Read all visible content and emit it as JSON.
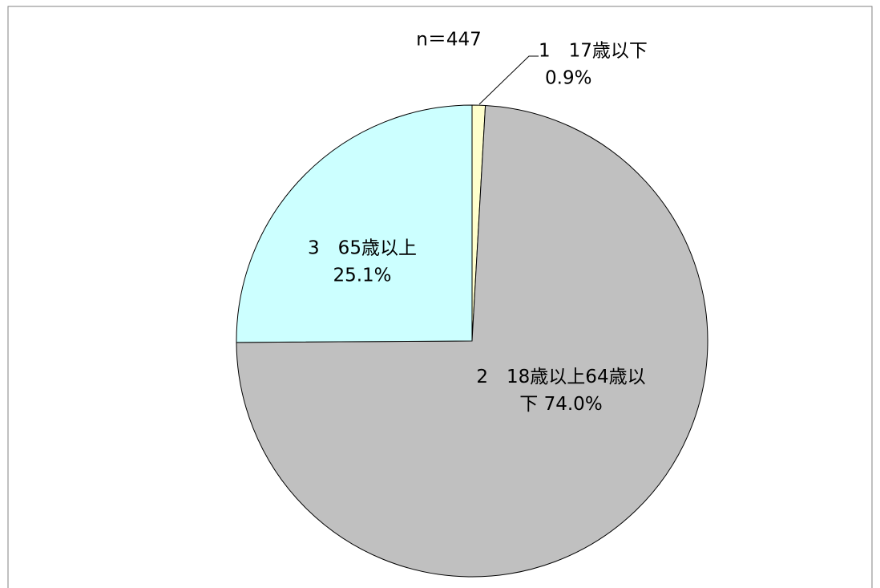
{
  "chart_data": {
    "type": "pie",
    "annotation": "n＝447",
    "categories": [
      "1　17歳以下",
      "2　18歳以上64歳以下",
      "3　65歳以上"
    ],
    "values": [
      0.9,
      74.0,
      25.1
    ],
    "value_labels": [
      "0.9%",
      "74.0%",
      "25.1%"
    ],
    "colors": [
      "#ffffcc",
      "#c0c0c0",
      "#ccffff"
    ]
  }
}
